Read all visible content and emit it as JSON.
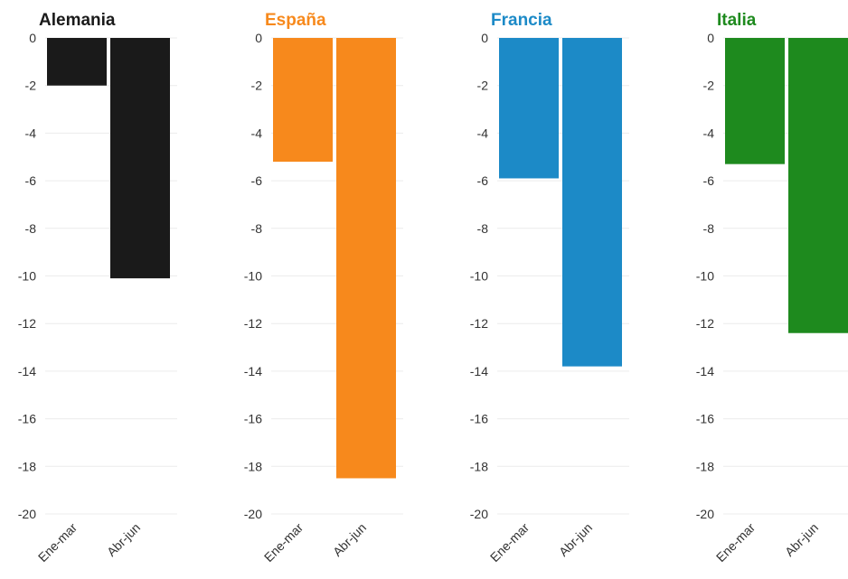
{
  "chart_data": [
    {
      "type": "bar",
      "title": "Alemania",
      "color": "#1a1a1a",
      "categories": [
        "Ene-mar",
        "Abr-jun"
      ],
      "values": [
        -2.0,
        -10.1
      ],
      "ylim": [
        -20,
        0
      ],
      "yticks": [
        "0",
        "-2",
        "-4",
        "-6",
        "-8",
        "-10",
        "-12",
        "-14",
        "-16",
        "-18",
        "-20"
      ],
      "grid": true
    },
    {
      "type": "bar",
      "title": "España",
      "color": "#f7891c",
      "categories": [
        "Ene-mar",
        "Abr-jun"
      ],
      "values": [
        -5.2,
        -18.5
      ],
      "ylim": [
        -20,
        0
      ],
      "yticks": [
        "0",
        "-2",
        "-4",
        "-6",
        "-8",
        "-10",
        "-12",
        "-14",
        "-16",
        "-18",
        "-20"
      ],
      "grid": true
    },
    {
      "type": "bar",
      "title": "Francia",
      "color": "#1c8ac7",
      "categories": [
        "Ene-mar",
        "Abr-jun"
      ],
      "values": [
        -5.9,
        -13.8
      ],
      "ylim": [
        -20,
        0
      ],
      "yticks": [
        "0",
        "-2",
        "-4",
        "-6",
        "-8",
        "-10",
        "-12",
        "-14",
        "-16",
        "-18",
        "-20"
      ],
      "grid": true
    },
    {
      "type": "bar",
      "title": "Italia",
      "color": "#1e8a1e",
      "categories": [
        "Ene-mar",
        "Abr-jun"
      ],
      "values": [
        -5.3,
        -12.4
      ],
      "ylim": [
        -20,
        0
      ],
      "yticks": [
        "0",
        "-2",
        "-4",
        "-6",
        "-8",
        "-10",
        "-12",
        "-14",
        "-16",
        "-18",
        "-20"
      ],
      "grid": true
    }
  ]
}
